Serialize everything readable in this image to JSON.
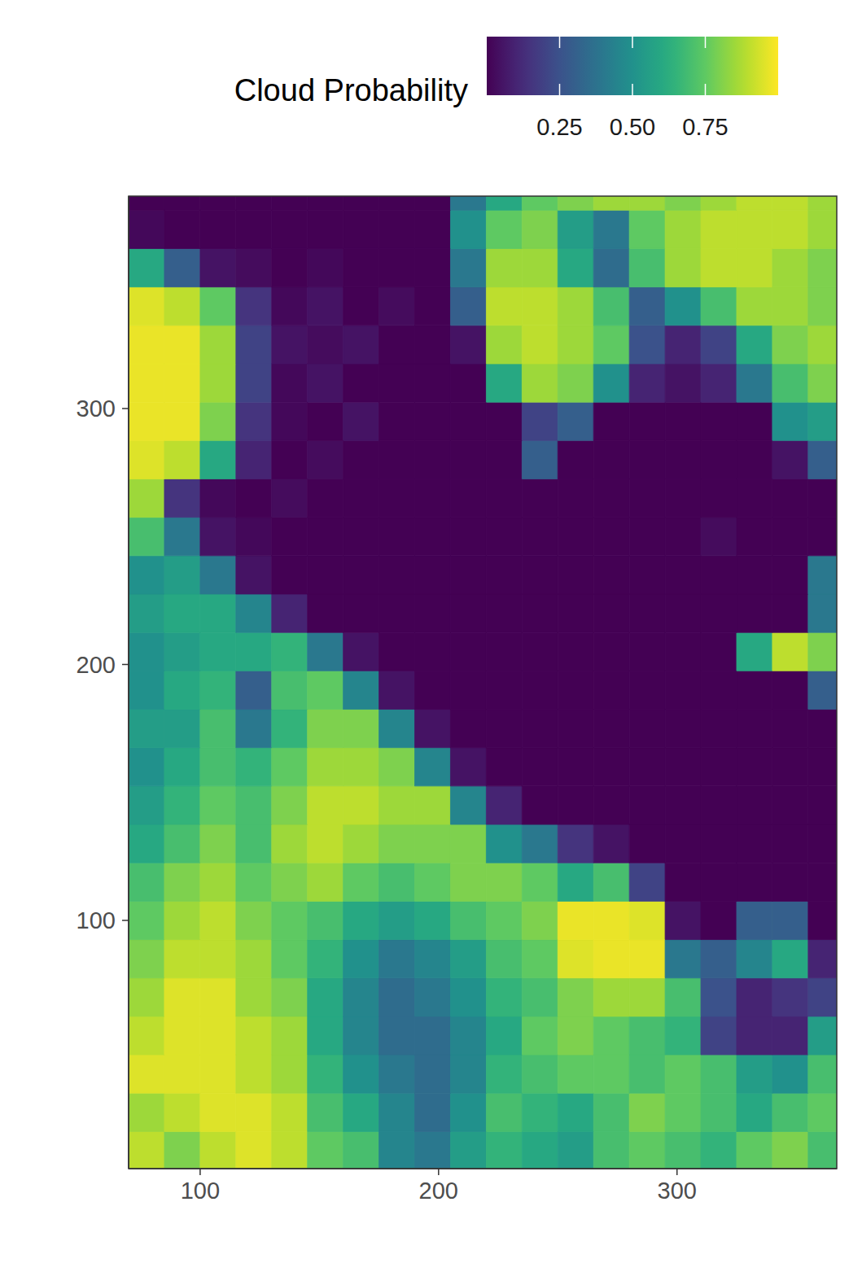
{
  "chart_data": {
    "type": "heatmap",
    "x": [
      77.5,
      92.5,
      107.5,
      122.5,
      137.5,
      152.5,
      167.5,
      182.5,
      197.5,
      212.5,
      227.5,
      242.5,
      257.5,
      272.5,
      287.5,
      302.5,
      317.5,
      332.5,
      347.5,
      362.5
    ],
    "y": [
      10,
      25,
      40,
      55,
      70,
      85,
      100,
      115,
      130,
      145,
      160,
      175,
      190,
      205,
      220,
      235,
      250,
      265,
      280,
      295,
      310,
      325,
      340,
      355,
      370,
      385
    ],
    "z": [
      [
        0.9,
        0.8,
        0.9,
        0.95,
        0.9,
        0.75,
        0.7,
        0.45,
        0.4,
        0.55,
        0.65,
        0.6,
        0.55,
        0.7,
        0.75,
        0.7,
        0.65,
        0.75,
        0.8,
        0.7
      ],
      [
        0.85,
        0.9,
        0.95,
        0.95,
        0.9,
        0.7,
        0.6,
        0.45,
        0.35,
        0.5,
        0.7,
        0.65,
        0.6,
        0.7,
        0.8,
        0.75,
        0.7,
        0.6,
        0.7,
        0.75
      ],
      [
        0.95,
        0.95,
        0.95,
        0.9,
        0.85,
        0.65,
        0.5,
        0.4,
        0.35,
        0.45,
        0.65,
        0.7,
        0.75,
        0.75,
        0.7,
        0.75,
        0.7,
        0.55,
        0.5,
        0.7
      ],
      [
        0.9,
        0.95,
        0.95,
        0.9,
        0.85,
        0.6,
        0.45,
        0.35,
        0.35,
        0.45,
        0.6,
        0.75,
        0.8,
        0.75,
        0.7,
        0.65,
        0.2,
        0.1,
        0.1,
        0.55
      ],
      [
        0.85,
        0.95,
        0.95,
        0.85,
        0.8,
        0.6,
        0.45,
        0.35,
        0.4,
        0.5,
        0.65,
        0.7,
        0.8,
        0.85,
        0.85,
        0.7,
        0.25,
        0.1,
        0.15,
        0.2
      ],
      [
        0.8,
        0.9,
        0.9,
        0.85,
        0.75,
        0.65,
        0.5,
        0.4,
        0.45,
        0.55,
        0.7,
        0.75,
        0.95,
        0.97,
        0.97,
        0.4,
        0.3,
        0.45,
        0.6,
        0.1
      ],
      [
        0.75,
        0.85,
        0.9,
        0.8,
        0.75,
        0.7,
        0.6,
        0.55,
        0.6,
        0.7,
        0.75,
        0.8,
        0.97,
        0.97,
        0.95,
        0.05,
        0,
        0.3,
        0.3,
        0
      ],
      [
        0.7,
        0.8,
        0.85,
        0.75,
        0.8,
        0.85,
        0.75,
        0.7,
        0.75,
        0.8,
        0.8,
        0.75,
        0.6,
        0.7,
        0.2,
        0,
        0,
        0,
        0,
        0
      ],
      [
        0.6,
        0.7,
        0.8,
        0.7,
        0.85,
        0.9,
        0.85,
        0.8,
        0.8,
        0.8,
        0.5,
        0.4,
        0.15,
        0.05,
        0,
        0,
        0,
        0,
        0,
        0
      ],
      [
        0.55,
        0.65,
        0.75,
        0.7,
        0.8,
        0.9,
        0.9,
        0.85,
        0.85,
        0.45,
        0.1,
        0,
        0,
        0,
        0,
        0,
        0,
        0,
        0,
        0
      ],
      [
        0.5,
        0.6,
        0.7,
        0.65,
        0.75,
        0.85,
        0.85,
        0.8,
        0.45,
        0.05,
        0,
        0,
        0,
        0,
        0,
        0,
        0,
        0,
        0,
        0
      ],
      [
        0.55,
        0.55,
        0.7,
        0.4,
        0.65,
        0.8,
        0.8,
        0.45,
        0.05,
        0,
        0,
        0,
        0,
        0,
        0,
        0,
        0,
        0,
        0,
        0
      ],
      [
        0.5,
        0.6,
        0.65,
        0.3,
        0.7,
        0.75,
        0.45,
        0.05,
        0,
        0,
        0,
        0,
        0,
        0,
        0,
        0,
        0,
        0,
        0,
        0.3
      ],
      [
        0.5,
        0.55,
        0.6,
        0.6,
        0.65,
        0.4,
        0.05,
        0,
        0,
        0,
        0,
        0,
        0,
        0,
        0,
        0,
        0,
        0.6,
        0.9,
        0.8
      ],
      [
        0.55,
        0.6,
        0.6,
        0.45,
        0.1,
        0,
        0,
        0,
        0,
        0,
        0,
        0,
        0,
        0,
        0,
        0,
        0,
        0,
        0,
        0.4
      ],
      [
        0.5,
        0.55,
        0.4,
        0.05,
        0,
        0,
        0,
        0,
        0,
        0,
        0,
        0,
        0,
        0,
        0,
        0,
        0,
        0,
        0,
        0.4
      ],
      [
        0.7,
        0.4,
        0.05,
        0.02,
        0,
        0,
        0,
        0,
        0,
        0,
        0,
        0,
        0,
        0,
        0,
        0,
        0.03,
        0,
        0,
        0
      ],
      [
        0.85,
        0.15,
        0.02,
        0,
        0.03,
        0,
        0,
        0,
        0,
        0,
        0,
        0,
        0,
        0,
        0,
        0,
        0,
        0,
        0,
        0
      ],
      [
        0.95,
        0.9,
        0.6,
        0.1,
        0,
        0.03,
        0,
        0,
        0,
        0,
        0,
        0.3,
        0,
        0,
        0,
        0,
        0,
        0,
        0.05,
        0.3
      ],
      [
        0.97,
        0.97,
        0.8,
        0.15,
        0.02,
        0,
        0.05,
        0,
        0,
        0,
        0,
        0.2,
        0.3,
        0,
        0,
        0,
        0,
        0,
        0.5,
        0.55
      ],
      [
        0.97,
        0.97,
        0.85,
        0.2,
        0.02,
        0.05,
        0,
        0,
        0,
        0,
        0.6,
        0.85,
        0.8,
        0.5,
        0.1,
        0.05,
        0.1,
        0.4,
        0.7,
        0.8
      ],
      [
        0.97,
        0.97,
        0.85,
        0.2,
        0.05,
        0.03,
        0.05,
        0,
        0,
        0.05,
        0.85,
        0.9,
        0.85,
        0.75,
        0.25,
        0.1,
        0.2,
        0.6,
        0.8,
        0.85
      ],
      [
        0.95,
        0.9,
        0.75,
        0.15,
        0.02,
        0.05,
        0,
        0.03,
        0,
        0.3,
        0.9,
        0.9,
        0.85,
        0.7,
        0.3,
        0.5,
        0.7,
        0.85,
        0.85,
        0.8
      ],
      [
        0.6,
        0.3,
        0.05,
        0.03,
        0,
        0.02,
        0,
        0,
        0,
        0.4,
        0.85,
        0.85,
        0.6,
        0.35,
        0.7,
        0.85,
        0.9,
        0.9,
        0.85,
        0.8
      ],
      [
        0.02,
        0,
        0,
        0,
        0,
        0,
        0,
        0,
        0,
        0.5,
        0.75,
        0.8,
        0.55,
        0.4,
        0.75,
        0.85,
        0.9,
        0.9,
        0.9,
        0.85
      ],
      [
        0,
        0,
        0,
        0,
        0,
        0,
        0,
        0,
        0,
        0.4,
        0.6,
        0.75,
        0.8,
        0.85,
        0.85,
        0.8,
        0.85,
        0.9,
        0.9,
        0.85
      ]
    ],
    "xlim": [
      70,
      367
    ],
    "ylim": [
      3,
      383
    ],
    "xticks": [
      100,
      200,
      300
    ],
    "yticks": [
      100,
      200,
      300
    ],
    "colorbar": {
      "title": "Cloud Probability",
      "range": [
        0,
        1
      ],
      "ticks": [
        0.25,
        {
          "value": 0.5,
          "label": "0.50"
        },
        0.75
      ]
    }
  }
}
